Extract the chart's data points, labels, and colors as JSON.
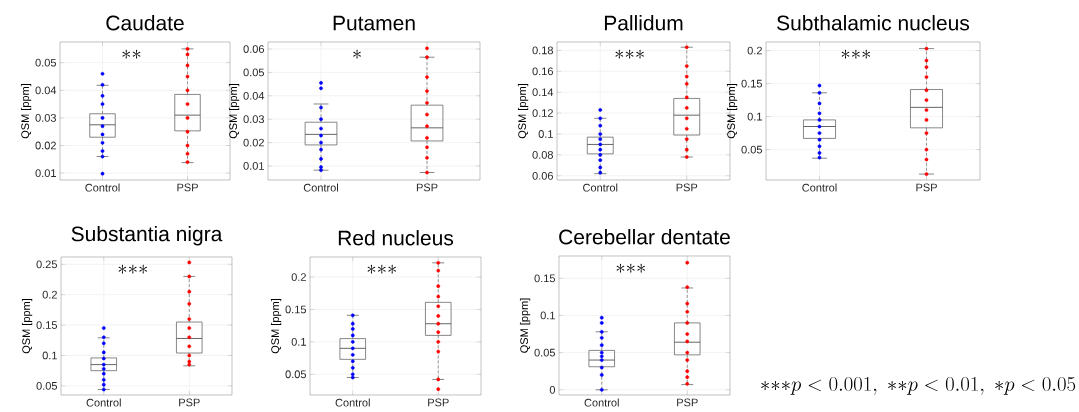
{
  "chart_data": [
    {
      "type": "box",
      "title": "Caudate",
      "ylabel": "QSM [ppm]",
      "categories": [
        "Control",
        "PSP"
      ],
      "color": "#555555",
      "ylim": [
        0.0075,
        0.0575
      ],
      "yticks": [
        0.01,
        0.02,
        0.03,
        0.04,
        0.05
      ],
      "grid": true,
      "annotations": [
        "{*}{*}"
      ],
      "boxes": [
        {
          "low": 0.016,
          "q1": 0.023,
          "median": 0.0275,
          "q3": 0.0315,
          "high": 0.0418
        },
        {
          "low": 0.0138,
          "q1": 0.0253,
          "median": 0.031,
          "q3": 0.0385,
          "high": 0.055
        }
      ],
      "series": [
        {
          "type": "scatter",
          "color": "#0000ff",
          "x": [
            "Control",
            "Control",
            "Control",
            "Control",
            "Control",
            "Control",
            "Control",
            "Control",
            "Control",
            "Control",
            "Control"
          ],
          "values": [
            0.046,
            0.042,
            0.038,
            0.035,
            0.03,
            0.027,
            0.024,
            0.021,
            0.018,
            0.016,
            0.0098
          ]
        },
        {
          "type": "scatter",
          "color": "#ff0000",
          "x": [
            "PSP",
            "PSP",
            "PSP",
            "PSP",
            "PSP",
            "PSP",
            "PSP",
            "PSP",
            "PSP",
            "PSP",
            "PSP"
          ],
          "values": [
            0.055,
            0.053,
            0.049,
            0.045,
            0.04,
            0.035,
            0.03,
            0.025,
            0.02,
            0.017,
            0.014
          ]
        }
      ]
    },
    {
      "type": "box",
      "title": "Putamen",
      "ylabel": "QSM [ppm]",
      "categories": [
        "Control",
        "PSP"
      ],
      "color": "#555555",
      "ylim": [
        0.004,
        0.063
      ],
      "yticks": [
        0.01,
        0.02,
        0.03,
        0.04,
        0.05,
        0.06
      ],
      "grid": true,
      "annotations": [
        "{*}"
      ],
      "boxes": [
        {
          "low": 0.0082,
          "q1": 0.019,
          "median": 0.0235,
          "q3": 0.0287,
          "high": 0.0365
        },
        {
          "low": 0.0072,
          "q1": 0.0207,
          "median": 0.0263,
          "q3": 0.036,
          "high": 0.0565
        }
      ],
      "series": [
        {
          "type": "scatter",
          "color": "#0000ff",
          "x": [
            "Control",
            "Control",
            "Control",
            "Control",
            "Control",
            "Control",
            "Control",
            "Control",
            "Control",
            "Control",
            "Control"
          ],
          "values": [
            0.0455,
            0.0432,
            0.035,
            0.03,
            0.026,
            0.023,
            0.02,
            0.017,
            0.013,
            0.0095,
            0.0082
          ]
        },
        {
          "type": "scatter",
          "color": "#ff0000",
          "x": [
            "PSP",
            "PSP",
            "PSP",
            "PSP",
            "PSP",
            "PSP",
            "PSP",
            "PSP",
            "PSP",
            "PSP",
            "PSP"
          ],
          "values": [
            0.0603,
            0.0565,
            0.048,
            0.042,
            0.037,
            0.032,
            0.027,
            0.022,
            0.018,
            0.0135,
            0.0072
          ]
        }
      ]
    },
    {
      "type": "box",
      "title": "Pallidum",
      "ylabel": "QSM [ppm]",
      "categories": [
        "Control",
        "PSP"
      ],
      "color": "#555555",
      "ylim": [
        0.056,
        0.188
      ],
      "yticks": [
        0.06,
        0.08,
        0.1,
        0.12,
        0.14,
        0.16,
        0.18
      ],
      "grid": true,
      "annotations": [
        "{*}{*}{*}"
      ],
      "boxes": [
        {
          "low": 0.062,
          "q1": 0.081,
          "median": 0.09,
          "q3": 0.097,
          "high": 0.115
        },
        {
          "low": 0.078,
          "q1": 0.099,
          "median": 0.118,
          "q3": 0.134,
          "high": 0.183
        }
      ],
      "series": [
        {
          "type": "scatter",
          "color": "#0000ff",
          "x": [
            "Control",
            "Control",
            "Control",
            "Control",
            "Control",
            "Control",
            "Control",
            "Control",
            "Control",
            "Control",
            "Control"
          ],
          "values": [
            0.123,
            0.115,
            0.108,
            0.1,
            0.095,
            0.09,
            0.085,
            0.08,
            0.075,
            0.068,
            0.063
          ]
        },
        {
          "type": "scatter",
          "color": "#ff0000",
          "x": [
            "PSP",
            "PSP",
            "PSP",
            "PSP",
            "PSP",
            "PSP",
            "PSP",
            "PSP",
            "PSP",
            "PSP",
            "PSP"
          ],
          "values": [
            0.183,
            0.165,
            0.155,
            0.148,
            0.135,
            0.125,
            0.115,
            0.105,
            0.095,
            0.085,
            0.078
          ]
        }
      ]
    },
    {
      "type": "box",
      "title": "Subthalamic nucleus",
      "ylabel": "QSM [ppm]",
      "categories": [
        "Control",
        "PSP"
      ],
      "color": "#555555",
      "ylim": [
        0.004,
        0.213
      ],
      "yticks": [
        0.05,
        0.1,
        0.15,
        0.2
      ],
      "grid": true,
      "annotations": [
        "{*}{*}{*}"
      ],
      "boxes": [
        {
          "low": 0.037,
          "q1": 0.067,
          "median": 0.085,
          "q3": 0.095,
          "high": 0.136
        },
        {
          "low": 0.013,
          "q1": 0.083,
          "median": 0.114,
          "q3": 0.141,
          "high": 0.203
        }
      ],
      "series": [
        {
          "type": "scatter",
          "color": "#0000ff",
          "x": [
            "Control",
            "Control",
            "Control",
            "Control",
            "Control",
            "Control",
            "Control",
            "Control",
            "Control",
            "Control",
            "Control"
          ],
          "values": [
            0.147,
            0.136,
            0.12,
            0.105,
            0.095,
            0.085,
            0.075,
            0.065,
            0.055,
            0.045,
            0.038
          ]
        },
        {
          "type": "scatter",
          "color": "#ff0000",
          "x": [
            "PSP",
            "PSP",
            "PSP",
            "PSP",
            "PSP",
            "PSP",
            "PSP",
            "PSP",
            "PSP",
            "PSP",
            "PSP",
            "PSP"
          ],
          "values": [
            0.203,
            0.185,
            0.175,
            0.16,
            0.14,
            0.125,
            0.11,
            0.095,
            0.075,
            0.05,
            0.035,
            0.013
          ]
        }
      ]
    },
    {
      "type": "box",
      "title": "Substantia nigra",
      "ylabel": "QSM [ppm]",
      "categories": [
        "Control",
        "PSP"
      ],
      "color": "#555555",
      "ylim": [
        0.035,
        0.262
      ],
      "yticks": [
        0.05,
        0.1,
        0.15,
        0.2,
        0.25
      ],
      "grid": true,
      "annotations": [
        "{*}{*}{*}"
      ],
      "boxes": [
        {
          "low": 0.044,
          "q1": 0.075,
          "median": 0.085,
          "q3": 0.096,
          "high": 0.129
        },
        {
          "low": 0.083,
          "q1": 0.104,
          "median": 0.128,
          "q3": 0.155,
          "high": 0.23
        }
      ],
      "series": [
        {
          "type": "scatter",
          "color": "#0000ff",
          "x": [
            "Control",
            "Control",
            "Control",
            "Control",
            "Control",
            "Control",
            "Control",
            "Control",
            "Control",
            "Control",
            "Control"
          ],
          "values": [
            0.145,
            0.13,
            0.12,
            0.105,
            0.095,
            0.085,
            0.078,
            0.07,
            0.06,
            0.052,
            0.044
          ]
        },
        {
          "type": "scatter",
          "color": "#ff0000",
          "x": [
            "PSP",
            "PSP",
            "PSP",
            "PSP",
            "PSP",
            "PSP",
            "PSP",
            "PSP",
            "PSP",
            "PSP",
            "PSP"
          ],
          "values": [
            0.253,
            0.23,
            0.205,
            0.185,
            0.16,
            0.145,
            0.13,
            0.115,
            0.1,
            0.09,
            0.085
          ]
        }
      ]
    },
    {
      "type": "box",
      "title": "Red nucleus",
      "ylabel": "QSM [ppm]",
      "categories": [
        "Control",
        "PSP"
      ],
      "color": "#555555",
      "ylim": [
        0.018,
        0.231
      ],
      "yticks": [
        0.05,
        0.1,
        0.15,
        0.2
      ],
      "grid": true,
      "annotations": [
        "{*}{*}{*}"
      ],
      "boxes": [
        {
          "low": 0.045,
          "q1": 0.073,
          "median": 0.09,
          "q3": 0.105,
          "high": 0.141
        },
        {
          "low": 0.042,
          "q1": 0.11,
          "median": 0.128,
          "q3": 0.161,
          "high": 0.222
        }
      ],
      "series": [
        {
          "type": "scatter",
          "color": "#0000ff",
          "x": [
            "Control",
            "Control",
            "Control",
            "Control",
            "Control",
            "Control",
            "Control",
            "Control",
            "Control",
            "Control",
            "Control"
          ],
          "values": [
            0.141,
            0.128,
            0.12,
            0.11,
            0.1,
            0.09,
            0.08,
            0.07,
            0.06,
            0.05,
            0.045
          ]
        },
        {
          "type": "scatter",
          "color": "#ff0000",
          "x": [
            "PSP",
            "PSP",
            "PSP",
            "PSP",
            "PSP",
            "PSP",
            "PSP",
            "PSP",
            "PSP",
            "PSP",
            "PSP",
            "PSP"
          ],
          "values": [
            0.222,
            0.21,
            0.186,
            0.17,
            0.155,
            0.14,
            0.128,
            0.115,
            0.1,
            0.085,
            0.042,
            0.027
          ]
        }
      ]
    },
    {
      "type": "box",
      "title": "Cerebellar dentate",
      "ylabel": "QSM [ppm]",
      "categories": [
        "Control",
        "PSP"
      ],
      "color": "#555555",
      "ylim": [
        -0.007,
        0.18
      ],
      "yticks": [
        0,
        0.05,
        0.1,
        0.15
      ],
      "grid": true,
      "annotations": [
        "{*}{*}{*}",
        "{*}{*}{*}p<0.001,\\ {*}{*}p<0.01,\\ {*}p<0.05"
      ],
      "boxes": [
        {
          "low": 0.0,
          "q1": 0.031,
          "median": 0.04,
          "q3": 0.053,
          "high": 0.078
        },
        {
          "low": 0.007,
          "q1": 0.047,
          "median": 0.064,
          "q3": 0.09,
          "high": 0.137
        }
      ],
      "series": [
        {
          "type": "scatter",
          "color": "#0000ff",
          "x": [
            "Control",
            "Control",
            "Control",
            "Control",
            "Control",
            "Control",
            "Control",
            "Control",
            "Control",
            "Control",
            "Control"
          ],
          "values": [
            0.097,
            0.09,
            0.078,
            0.07,
            0.06,
            0.05,
            0.045,
            0.04,
            0.03,
            0.02,
            0.0
          ]
        },
        {
          "type": "scatter",
          "color": "#ff0000",
          "x": [
            "PSP",
            "PSP",
            "PSP",
            "PSP",
            "PSP",
            "PSP",
            "PSP",
            "PSP",
            "PSP",
            "PSP",
            "PSP",
            "PSP"
          ],
          "values": [
            0.171,
            0.138,
            0.116,
            0.105,
            0.09,
            0.075,
            0.065,
            0.05,
            0.04,
            0.025,
            0.017,
            0.008
          ]
        }
      ]
    }
  ]
}
